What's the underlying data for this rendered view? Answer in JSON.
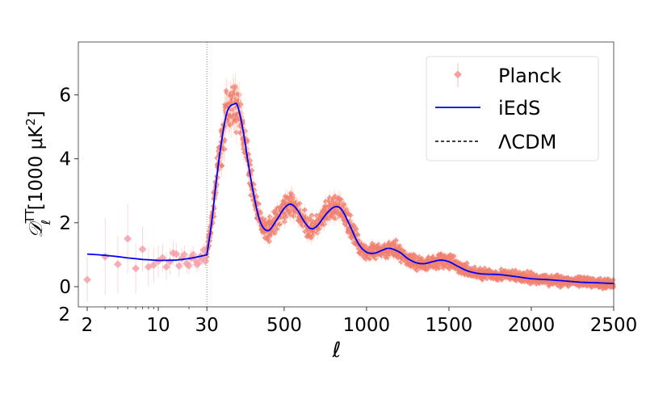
{
  "chart_data": {
    "type": "line",
    "xlabel": "ℓ",
    "ylabel": {
      "main": "𝒟",
      "sub": "ℓ",
      "sup": "TT",
      "unit": "[1000 μK",
      "unit_sup": "2",
      "unit_end": "]"
    },
    "x_scale": "log for 2–30, linear for 30–2500",
    "xlim": [
      1.7,
      2500
    ],
    "ylim": [
      -0.65,
      7.6
    ],
    "xticks": [
      2,
      10,
      30,
      500,
      1000,
      1500,
      2000,
      2500
    ],
    "xtick_labels": [
      "2",
      "10",
      "30",
      "500",
      "1000",
      "1500",
      "2000",
      "2500"
    ],
    "yticks": [
      0,
      2,
      4,
      6
    ],
    "ytick_labels": [
      "0",
      "2",
      "4",
      "6"
    ],
    "extra_tick_label": "2",
    "grid": false,
    "vline": {
      "x": 30,
      "style": "dotted"
    },
    "legend": {
      "placement": "top-right",
      "entries": [
        "Planck",
        "iEdS",
        "ΛCDM"
      ]
    },
    "colors": {
      "planck": "#f08070",
      "planck_low": "#f4a0a8",
      "iEdS": "#0000ee",
      "lcdm": "#000000"
    },
    "series": [
      {
        "name": "iEdS",
        "style": "solid",
        "x": [
          2,
          3,
          4,
          5,
          7,
          10,
          15,
          20,
          25,
          30,
          60,
          100,
          150,
          200,
          220,
          250,
          300,
          350,
          400,
          450,
          500,
          540,
          580,
          620,
          660,
          700,
          760,
          810,
          850,
          900,
          950,
          1000,
          1050,
          1100,
          1140,
          1200,
          1250,
          1300,
          1350,
          1400,
          1450,
          1500,
          1560,
          1620,
          1700,
          1800,
          1900,
          2000,
          2100,
          2200,
          2300,
          2400,
          2500
        ],
        "y": [
          1.02,
          0.98,
          0.94,
          0.9,
          0.85,
          0.82,
          0.83,
          0.88,
          0.94,
          1.0,
          2.0,
          3.8,
          5.4,
          5.72,
          5.6,
          4.9,
          3.3,
          2.1,
          1.75,
          2.05,
          2.45,
          2.58,
          2.4,
          2.05,
          1.82,
          1.9,
          2.3,
          2.5,
          2.4,
          1.9,
          1.35,
          1.08,
          1.05,
          1.15,
          1.2,
          1.08,
          0.88,
          0.75,
          0.72,
          0.78,
          0.83,
          0.78,
          0.62,
          0.48,
          0.4,
          0.38,
          0.32,
          0.25,
          0.22,
          0.18,
          0.14,
          0.12,
          0.1
        ]
      },
      {
        "name": "Planck",
        "style": "points",
        "x": [
          2,
          3,
          4,
          5,
          6,
          7,
          8,
          9,
          10,
          11,
          12,
          13,
          14,
          15,
          16,
          17,
          18,
          19,
          20,
          21,
          22,
          23,
          24,
          25,
          26,
          27,
          28,
          29
        ],
        "y": [
          0.22,
          0.94,
          0.7,
          1.5,
          0.57,
          1.17,
          0.62,
          0.68,
          0.8,
          0.9,
          0.62,
          0.78,
          1.05,
          1.02,
          0.65,
          0.88,
          1.0,
          0.72,
          0.66,
          0.9,
          1.0,
          0.85,
          0.7,
          0.75,
          0.95,
          0.9,
          1.15,
          0.8
        ],
        "err": [
          0.7,
          1.2,
          0.9,
          1.1,
          0.8,
          0.7,
          0.6,
          0.55,
          0.5,
          0.45,
          0.42,
          0.4,
          0.38,
          0.35,
          0.33,
          0.32,
          0.3,
          0.3,
          0.28,
          0.27,
          0.26,
          0.25,
          0.25,
          0.24,
          0.23,
          0.22,
          0.22,
          0.21
        ]
      }
    ]
  }
}
